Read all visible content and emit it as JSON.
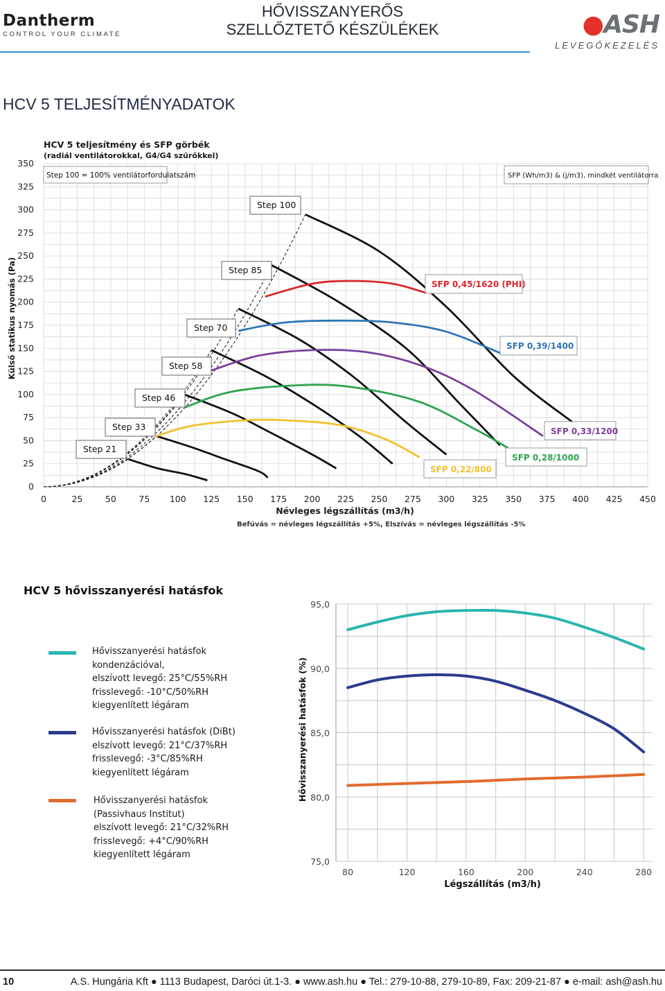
{
  "header": {
    "brand_left": "Dantherm",
    "brand_left_tagline": "CONTROL YOUR CLIMATE",
    "title_line1": "HŐVISSZANYERŐS",
    "title_line2": "SZELLŐZTETŐ KÉSZÜLÉKEK",
    "brand_right": "ASH",
    "brand_right_sub": "LEVEGŐKEZELÉS"
  },
  "section_title": "HCV 5 TELJESÍTMÉNYADATOK",
  "chart_data": [
    {
      "type": "line",
      "title": "HCV 5 teljesítmény és SFP görbék",
      "subtitle": "(radiál ventilátorokkal, G4/G4 szűrőkkel)",
      "xlabel": "Névleges légszállítás (m3/h)",
      "ylabel": "Külső statikus nyomás (Pa)",
      "xlim": [
        0,
        450
      ],
      "ylim": [
        0,
        350
      ],
      "xticks": [
        0,
        25,
        50,
        75,
        100,
        125,
        150,
        175,
        200,
        225,
        250,
        275,
        300,
        325,
        350,
        375,
        400,
        425,
        450
      ],
      "yticks": [
        0,
        25,
        50,
        75,
        100,
        125,
        150,
        175,
        200,
        225,
        250,
        275,
        300,
        325,
        350
      ],
      "note_step": "Step 100 = 100% ventilátorfordulatszám",
      "note_sfp": "SFP (Wh/m3) & (j/m3), mindkét ventilátorra",
      "footnote": "Befúvás = névleges légszállítás +5%, Elszívás = névleges légszállítás -5%",
      "grid": true,
      "step_series": [
        {
          "name": "Step 100",
          "x": [
            195,
            250,
            300,
            350,
            394
          ],
          "y": [
            295,
            255,
            195,
            120,
            70
          ]
        },
        {
          "name": "Step 85",
          "x": [
            170,
            220,
            270,
            310,
            340
          ],
          "y": [
            240,
            200,
            150,
            90,
            45
          ]
        },
        {
          "name": "Step 70",
          "x": [
            145,
            190,
            230,
            270,
            300
          ],
          "y": [
            193,
            160,
            120,
            70,
            35
          ]
        },
        {
          "name": "Step 58",
          "x": [
            125,
            165,
            200,
            235,
            260
          ],
          "y": [
            148,
            120,
            90,
            55,
            25
          ]
        },
        {
          "name": "Step 46",
          "x": [
            105,
            140,
            170,
            200,
            218
          ],
          "y": [
            100,
            80,
            58,
            35,
            20
          ]
        },
        {
          "name": "Step 33",
          "x": [
            84,
            110,
            135,
            160,
            167
          ],
          "y": [
            55,
            43,
            30,
            17,
            10
          ]
        },
        {
          "name": "Step 21",
          "x": [
            63,
            85,
            105,
            122
          ],
          "y": [
            30,
            20,
            14,
            7
          ]
        }
      ],
      "sfp_series": [
        {
          "name": "SFP 0,45/1620 (PHI)",
          "color": "#d9262c",
          "x": [
            165,
            200,
            230,
            260,
            285
          ],
          "y": [
            206,
            220,
            223,
            220,
            210
          ]
        },
        {
          "name": "SFP 0,39/1400",
          "color": "#2f75b5",
          "x": [
            145,
            180,
            220,
            260,
            300,
            340
          ],
          "y": [
            169,
            178,
            180,
            178,
            168,
            145
          ]
        },
        {
          "name": "SFP 0,33/1200",
          "color": "#7b3f9a",
          "x": [
            125,
            160,
            200,
            240,
            280,
            320,
            372
          ],
          "y": [
            126,
            142,
            148,
            146,
            132,
            105,
            55
          ]
        },
        {
          "name": "SFP 0,28/1000",
          "color": "#2ea44f",
          "x": [
            105,
            140,
            190,
            230,
            280,
            322,
            346
          ],
          "y": [
            86,
            103,
            110,
            108,
            92,
            62,
            42
          ]
        },
        {
          "name": "SFP 0,22/800",
          "color": "#f2c12e",
          "x": [
            84,
            110,
            150,
            180,
            220,
            254,
            280
          ],
          "y": [
            55,
            66,
            72,
            72,
            67,
            52,
            32
          ]
        }
      ]
    },
    {
      "type": "line",
      "title": "HCV 5 hővisszanyerési hatásfok",
      "xlabel": "Légszállítás (m3/h)",
      "ylabel": "Hővisszanyerési hatásfok (%)",
      "xlim": [
        72,
        286
      ],
      "ylim": [
        75,
        95
      ],
      "xticks": [
        80,
        120,
        160,
        200,
        240,
        280
      ],
      "yticks": [
        "75,0",
        "80,0",
        "85,0",
        "90,0",
        "95,0"
      ],
      "grid": true,
      "series": [
        {
          "name": "Hővisszanyerési hatásfok kondenzációval, elszívott levegő: 25°C/55%RH frisslevegő: -10°C/50%RH kiegyenlített légáram",
          "color": "#2bb5b0",
          "x": [
            80,
            100,
            120,
            140,
            160,
            180,
            200,
            220,
            240,
            260,
            280
          ],
          "y": [
            93.0,
            93.6,
            94.1,
            94.4,
            94.5,
            94.5,
            94.3,
            93.9,
            93.2,
            92.4,
            91.5
          ]
        },
        {
          "name": "Hővisszanyerési hatásfok (DiBt) elszívott levegő: 21°C/37%RH frisslevegő: -3°C/85%RH kiegyenlített légáram",
          "color": "#2c3a8f",
          "x": [
            80,
            100,
            120,
            140,
            160,
            180,
            200,
            220,
            240,
            260,
            280
          ],
          "y": [
            88.5,
            89.1,
            89.4,
            89.5,
            89.4,
            89.0,
            88.3,
            87.5,
            86.5,
            85.3,
            83.5
          ]
        },
        {
          "name": "Hővisszanyerési hatásfok (Passivhaus Institut) elszívott levegő: 21°C/32%RH frisslevegő: +4°C/90%RH kiegyenlített légáram",
          "color": "#e26a2c",
          "x": [
            80,
            120,
            160,
            200,
            240,
            280
          ],
          "y": [
            80.9,
            81.05,
            81.2,
            81.4,
            81.55,
            81.75
          ]
        }
      ]
    }
  ],
  "legend2": [
    [
      "Hővisszanyerési hatásfok",
      "kondenzációval,",
      "elszívott levegő: 25°C/55%RH",
      "frisslevegő: -10°C/50%RH",
      "kiegyenlített légáram"
    ],
    [
      "Hővisszanyerési hatásfok (DiBt)",
      "elszívott levegő: 21°C/37%RH",
      "frisslevegő: -3°C/85%RH",
      "kiegyenlített légáram"
    ],
    [
      "Hővisszanyerési hatásfok",
      "(Passivhaus Institut)",
      "elszívott levegő: 21°C/32%RH",
      "frisslevegő: +4°C/90%RH",
      "kiegyenlített légáram"
    ]
  ],
  "footer": {
    "page_number": "10",
    "address": "A.S. Hungária Kft ● 1113 Budapest, Daróci út.1-3. ● www.ash.hu ● Tel.: 279-10-88, 279-10-89, Fax: 209-21-87 ● e-mail: ash@ash.hu"
  }
}
